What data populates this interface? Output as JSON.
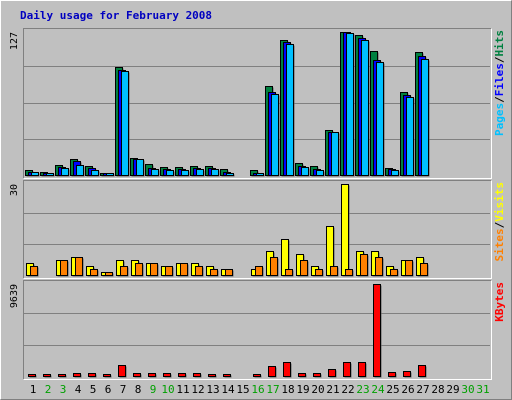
{
  "chart_data": {
    "type": "bar",
    "title": "Daily usage for February 2008",
    "categories": [
      "1",
      "2",
      "3",
      "4",
      "5",
      "6",
      "7",
      "8",
      "9",
      "10",
      "11",
      "12",
      "13",
      "14",
      "15",
      "16",
      "17",
      "18",
      "19",
      "20",
      "21",
      "22",
      "23",
      "24",
      "25",
      "26",
      "27",
      "28",
      "29",
      "30",
      "31"
    ],
    "weekend_days": [
      "2",
      "3",
      "9",
      "10",
      "16",
      "17",
      "23",
      "24",
      "30",
      "31"
    ],
    "panels": [
      {
        "name": "hits-files-pages",
        "ymax_label": "127",
        "ymax": 127,
        "legend": [
          {
            "text": "Pages",
            "color": "#00c0ff"
          },
          {
            "text": "/",
            "color": "#000000"
          },
          {
            "text": "Files",
            "color": "#0000ff"
          },
          {
            "text": "/",
            "color": "#000000"
          },
          {
            "text": "Hits",
            "color": "#008040"
          }
        ],
        "series": [
          {
            "name": "Hits",
            "color": "#008040",
            "values": [
              4,
              3,
              9,
              14,
              8,
              2,
              96,
              15,
              10,
              7,
              7,
              8,
              8,
              5,
              0,
              4,
              79,
              120,
              11,
              8,
              40,
              127,
              124,
              110,
              6,
              74,
              109,
              0,
              0,
              0,
              0
            ]
          },
          {
            "name": "Files",
            "color": "#0000ff",
            "values": [
              3,
              2,
              7,
              12,
              6,
              1,
              93,
              14,
              6,
              5,
              5,
              6,
              6,
              3,
              0,
              2,
              74,
              118,
              8,
              5,
              38,
              127,
              122,
              102,
              5,
              71,
              106,
              0,
              0,
              0,
              0
            ]
          },
          {
            "name": "Pages",
            "color": "#00c0ff",
            "values": [
              3,
              2,
              6,
              9,
              4,
              1,
              92,
              14,
              5,
              4,
              4,
              5,
              5,
              2,
              0,
              2,
              72,
              116,
              7,
              4,
              38,
              126,
              120,
              100,
              4,
              69,
              103,
              0,
              0,
              0,
              0
            ]
          }
        ]
      },
      {
        "name": "visits-sites",
        "ymax_label": "30",
        "ymax": 30,
        "legend": [
          {
            "text": "Sites",
            "color": "#ff8000"
          },
          {
            "text": "/",
            "color": "#000000"
          },
          {
            "text": "Visits",
            "color": "#ffff00"
          }
        ],
        "series": [
          {
            "name": "Visits",
            "color": "#ffff00",
            "values": [
              4,
              0,
              5,
              6,
              3,
              1,
              5,
              5,
              4,
              3,
              4,
              4,
              3,
              2,
              0,
              2,
              8,
              12,
              7,
              3,
              16,
              30,
              8,
              8,
              3,
              5,
              6,
              0,
              0,
              0,
              0
            ]
          },
          {
            "name": "Sites",
            "color": "#ff8000",
            "values": [
              3,
              0,
              5,
              6,
              2,
              1,
              3,
              4,
              4,
              3,
              4,
              3,
              2,
              2,
              0,
              3,
              6,
              2,
              5,
              2,
              3,
              2,
              7,
              6,
              2,
              5,
              4,
              0,
              0,
              0,
              0
            ]
          }
        ]
      },
      {
        "name": "kbytes",
        "ymax_label": "9639",
        "ymax": 9639,
        "legend": [
          {
            "text": "KBytes",
            "color": "#ff0000"
          }
        ],
        "series": [
          {
            "name": "KBytes",
            "color": "#ff0000",
            "values": [
              150,
              150,
              150,
              300,
              300,
              150,
              1150,
              300,
              300,
              300,
              300,
              300,
              150,
              150,
              0,
              150,
              1000,
              1500,
              300,
              300,
              700,
              1500,
              1500,
              9639,
              450,
              550,
              1200,
              0,
              0,
              0,
              0
            ]
          }
        ]
      }
    ]
  }
}
